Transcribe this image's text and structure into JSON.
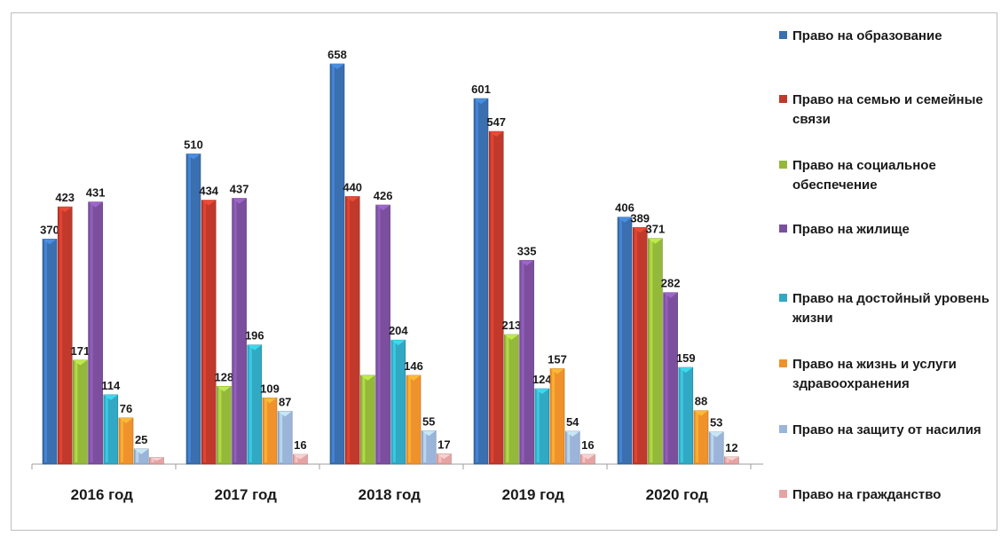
{
  "chart_data": {
    "type": "bar",
    "categories": [
      "2016 год",
      "2017 год",
      "2018 год",
      "2019 год",
      "2020 год"
    ],
    "series": [
      {
        "name": "Право на образование",
        "color": "#3a6fb0",
        "values": [
          370,
          510,
          658,
          601,
          406
        ]
      },
      {
        "name": "Право на семью и семейные связи",
        "color": "#c0392b",
        "values": [
          423,
          434,
          440,
          547,
          389
        ]
      },
      {
        "name": "Право на социальное обеспечение",
        "color": "#94b83a",
        "values": [
          171,
          128,
          146,
          213,
          371
        ]
      },
      {
        "name": "Право на жилище",
        "color": "#7b4f9e",
        "values": [
          431,
          437,
          426,
          335,
          282
        ]
      },
      {
        "name": "Право на достойный уровень жизни",
        "color": "#31a9c4",
        "values": [
          114,
          196,
          204,
          124,
          159
        ]
      },
      {
        "name": "Право на жизнь и услуги здравоохранения",
        "color": "#f0922b",
        "values": [
          76,
          109,
          146,
          157,
          88
        ]
      },
      {
        "name": "Право на защиту от насилия",
        "color": "#9bb4d9",
        "values": [
          25,
          87,
          55,
          54,
          53
        ]
      },
      {
        "name": "Право на гражданство",
        "color": "#e6a3a3",
        "values": [
          11,
          16,
          17,
          16,
          12
        ]
      }
    ],
    "data_labels": [
      [
        "370",
        "423",
        "171",
        "431",
        "114",
        "76",
        "25",
        ""
      ],
      [
        "510",
        "434",
        "128",
        "437",
        "196",
        "109",
        "87",
        "16"
      ],
      [
        "658",
        "440",
        "",
        "426",
        "204",
        "146",
        "55",
        "17"
      ],
      [
        "601",
        "547",
        "213",
        "335",
        "124",
        "157",
        "54",
        "16"
      ],
      [
        "406",
        "389",
        "371",
        "282",
        "159",
        "88",
        "53",
        "12"
      ]
    ],
    "ylim": [
      0,
      680
    ],
    "grid": false,
    "legend_position": "right"
  }
}
